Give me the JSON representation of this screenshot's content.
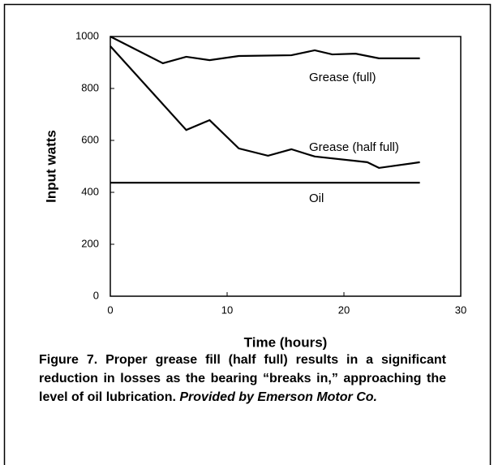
{
  "chart_data": {
    "type": "line",
    "ylabel": "Input watts",
    "xlabel": "Time (hours)",
    "xlim": [
      0,
      30
    ],
    "ylim": [
      0,
      1000
    ],
    "xticks": [
      0,
      10,
      20,
      30
    ],
    "yticks": [
      0,
      200,
      400,
      600,
      800,
      1000
    ],
    "series": [
      {
        "name": "Grease (full)",
        "color": "#000000",
        "x": [
          0,
          4.5,
          6.5,
          8.5,
          11,
          15.5,
          17.5,
          19,
          21,
          23,
          26.5
        ],
        "values": [
          1000,
          897,
          922,
          909,
          925,
          928,
          947,
          931,
          934,
          916,
          916
        ]
      },
      {
        "name": "Grease (half full)",
        "color": "#000000",
        "x": [
          0,
          6.5,
          8.5,
          11,
          13.5,
          15.5,
          17.5,
          22,
          23,
          26.5
        ],
        "values": [
          963,
          640,
          678,
          569,
          541,
          566,
          538,
          516,
          494,
          516
        ]
      },
      {
        "name": "Oil",
        "color": "#000000",
        "x": [
          0,
          26.5
        ],
        "values": [
          437,
          437
        ]
      }
    ],
    "caption": "Figure 7. Proper grease fill (half full) results in a significant reduction in losses as the bearing “breaks in,” approaching the level of oil lubrication.",
    "credit": "Provided by Emerson Motor Co."
  }
}
